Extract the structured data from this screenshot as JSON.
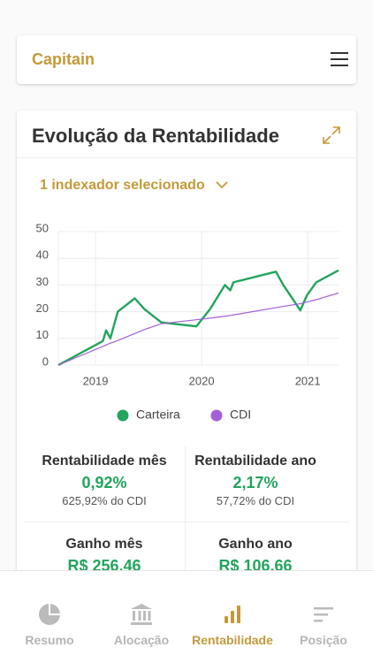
{
  "header": {
    "title": "Capitain"
  },
  "card": {
    "title": "Evolução da Rentabilidade",
    "selector": "1 indexador selecionado"
  },
  "chart_data": {
    "type": "line",
    "x": [
      2018.65,
      2019.07,
      2019.1,
      2019.14,
      2019.21,
      2019.37,
      2019.46,
      2019.62,
      2019.95,
      2020.08,
      2020.22,
      2020.27,
      2020.3,
      2020.7,
      2020.77,
      2020.93,
      2020.99,
      2021.08,
      2021.29
    ],
    "series": [
      {
        "name": "Carteira",
        "color": "#22a45d",
        "values": [
          0,
          9,
          13,
          10,
          20,
          25,
          21,
          16,
          14.5,
          21,
          30,
          28,
          31,
          35,
          30,
          20.5,
          26,
          31,
          35.5
        ]
      },
      {
        "name": "CDI",
        "color": "#a35fd6",
        "values": [
          0,
          7,
          7.5,
          8.2,
          9.2,
          11.8,
          13.3,
          15.5,
          17,
          17.6,
          18.3,
          18.6,
          18.8,
          21.5,
          22,
          23,
          23.6,
          24.5,
          27
        ]
      }
    ],
    "xlim": [
      2018.65,
      2021.29
    ],
    "xticks": [
      2019,
      2020,
      2021
    ],
    "ylim": [
      0,
      50
    ],
    "yticks": [
      0,
      10,
      20,
      30,
      40,
      50
    ],
    "grid": true
  },
  "stats": [
    {
      "label": "Rentabilidade mês",
      "value": "0,92%",
      "sub": "625,92% do CDI"
    },
    {
      "label": "Rentabilidade ano",
      "value": "2,17%",
      "sub": "57,72% do CDI"
    },
    {
      "label": "Ganho mês",
      "value": "R$ 256,46"
    },
    {
      "label": "Ganho ano",
      "value": "R$ 106,66"
    }
  ],
  "nav": [
    {
      "label": "Resumo"
    },
    {
      "label": "Alocação"
    },
    {
      "label": "Rentabilidade"
    },
    {
      "label": "Posição"
    }
  ]
}
